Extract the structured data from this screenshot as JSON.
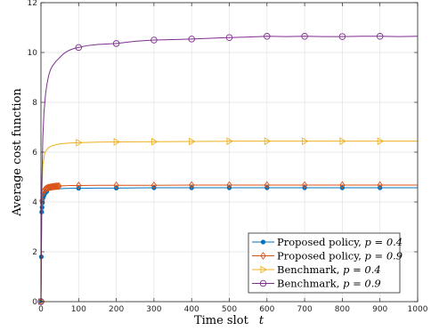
{
  "chart_data": {
    "type": "line",
    "xlabel": {
      "text": "Time slot",
      "var": "t"
    },
    "ylabel": "Average cost function",
    "xlim": [
      0,
      1000
    ],
    "ylim": [
      0,
      12
    ],
    "xticks": [
      0,
      100,
      200,
      300,
      400,
      500,
      600,
      700,
      800,
      900,
      1000
    ],
    "yticks": [
      0,
      2,
      4,
      6,
      8,
      10,
      12
    ],
    "grid": true,
    "legend_position": "bottom-right",
    "series": [
      {
        "name": "Proposed policy, ",
        "param": "p = 0.4",
        "color": "#0072BD",
        "marker": "dot",
        "x": [
          0,
          2,
          5,
          10,
          15,
          20,
          30,
          40,
          50,
          60,
          80,
          100,
          150,
          200,
          300,
          400,
          500,
          600,
          700,
          800,
          900,
          1000
        ],
        "y": [
          0,
          3.6,
          4.15,
          4.35,
          4.42,
          4.46,
          4.5,
          4.52,
          4.53,
          4.54,
          4.55,
          4.55,
          4.56,
          4.56,
          4.57,
          4.57,
          4.57,
          4.57,
          4.57,
          4.57,
          4.57,
          4.57
        ],
        "marker_x": [
          0,
          100,
          200,
          300,
          400,
          500,
          600,
          700,
          800,
          900
        ],
        "dense_marker_x": [
          1,
          2,
          3,
          4,
          5,
          6,
          7,
          8,
          9,
          10,
          11,
          12,
          13,
          14,
          15
        ]
      },
      {
        "name": "Proposed policy, ",
        "param": "p = 0.9",
        "color": "#D95319",
        "marker": "diamond",
        "x": [
          0,
          2,
          5,
          10,
          15,
          20,
          30,
          40,
          50,
          60,
          80,
          100,
          150,
          200,
          300,
          400,
          500,
          600,
          700,
          800,
          900,
          1000
        ],
        "y": [
          0,
          3.9,
          4.35,
          4.5,
          4.55,
          4.58,
          4.61,
          4.63,
          4.64,
          4.65,
          4.66,
          4.66,
          4.67,
          4.67,
          4.67,
          4.68,
          4.68,
          4.68,
          4.68,
          4.68,
          4.68,
          4.68
        ],
        "marker_x": [
          0,
          100,
          200,
          300,
          400,
          500,
          600,
          700,
          800,
          900
        ],
        "dense_marker_x": [
          3,
          6,
          9,
          12,
          15,
          18,
          21,
          24,
          27,
          30,
          33,
          36,
          39,
          42,
          45,
          48
        ]
      },
      {
        "name": "Benchmark, ",
        "param": "p = 0.4",
        "color": "#EDB120",
        "marker": "triangle-right",
        "x": [
          0,
          2,
          5,
          10,
          15,
          20,
          30,
          40,
          50,
          70,
          100,
          150,
          200,
          300,
          400,
          500,
          600,
          700,
          800,
          900,
          1000
        ],
        "y": [
          0,
          4.2,
          5.5,
          5.95,
          6.1,
          6.18,
          6.26,
          6.3,
          6.33,
          6.36,
          6.38,
          6.4,
          6.41,
          6.42,
          6.43,
          6.44,
          6.44,
          6.44,
          6.44,
          6.44,
          6.44
        ],
        "marker_x": [
          0,
          100,
          200,
          300,
          400,
          500,
          600,
          700,
          800,
          900
        ],
        "dense_marker_x": []
      },
      {
        "name": "Benchmark, ",
        "param": "p = 0.9",
        "color": "#7E2F8E",
        "marker": "circle",
        "x": [
          0,
          2,
          5,
          8,
          12,
          15,
          20,
          25,
          30,
          40,
          50,
          60,
          70,
          80,
          90,
          100,
          120,
          150,
          200,
          250,
          300,
          350,
          400,
          450,
          500,
          550,
          600,
          650,
          700,
          750,
          800,
          850,
          900,
          950,
          1000
        ],
        "y": [
          0,
          4.5,
          6.6,
          7.6,
          8.3,
          8.65,
          9.05,
          9.3,
          9.45,
          9.65,
          9.8,
          9.95,
          10.05,
          10.12,
          10.17,
          10.2,
          10.27,
          10.32,
          10.36,
          10.45,
          10.5,
          10.52,
          10.54,
          10.57,
          10.6,
          10.62,
          10.65,
          10.64,
          10.65,
          10.64,
          10.64,
          10.65,
          10.65,
          10.64,
          10.65
        ],
        "marker_x": [
          0,
          100,
          200,
          300,
          400,
          500,
          600,
          700,
          800,
          900
        ],
        "dense_marker_x": []
      }
    ]
  }
}
